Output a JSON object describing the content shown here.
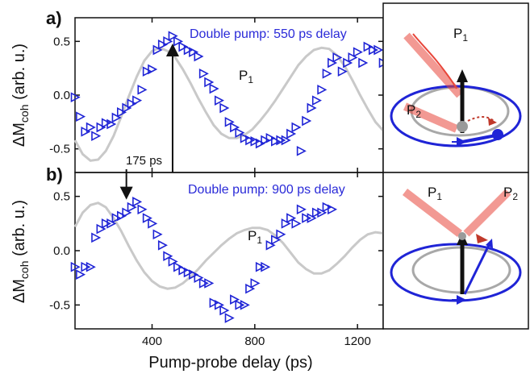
{
  "colors": {
    "marker": "#1f24d6",
    "reference_curve": "#c9c9c9",
    "pulse": "#e8463a",
    "orbit": "#1f24d6",
    "gray_orbit": "#a8a8a8",
    "axis": "#111111"
  },
  "x_axis": {
    "label": "Pump-probe delay (ps)",
    "ticks": [
      400,
      800,
      1200
    ],
    "range": [
      100,
      1300
    ]
  },
  "chart_data": [
    {
      "type": "scatter",
      "panel_label": "a)",
      "title": "Double pump: 550 ps delay",
      "ylabel_main": "ΔM",
      "ylabel_sub": "coh",
      "ylabel_tail": " (arb. u.)",
      "xlim": [
        100,
        1300
      ],
      "ylim": [
        -0.72,
        0.72
      ],
      "yticks": [
        "0.5",
        "0.0",
        "-0.5"
      ],
      "ytick_values": [
        0.5,
        0.0,
        -0.5
      ],
      "marker": "triangle-right, open",
      "grid": false,
      "reference_curve": {
        "label": "P",
        "label_sub": "1",
        "x": [
          100,
          130,
          160,
          190,
          220,
          250,
          280,
          310,
          340,
          370,
          400,
          430,
          460,
          490,
          520,
          550,
          580,
          610,
          640,
          670,
          700,
          730,
          760,
          790,
          820,
          850,
          880,
          910,
          940,
          970,
          1000,
          1030,
          1060,
          1090,
          1120,
          1150,
          1180,
          1210,
          1240,
          1270,
          1300
        ],
        "y": [
          -0.42,
          -0.55,
          -0.61,
          -0.6,
          -0.52,
          -0.38,
          -0.2,
          -0.01,
          0.17,
          0.32,
          0.41,
          0.44,
          0.41,
          0.35,
          0.24,
          0.11,
          -0.03,
          -0.16,
          -0.28,
          -0.36,
          -0.4,
          -0.4,
          -0.37,
          -0.32,
          -0.24,
          -0.15,
          -0.05,
          0.06,
          0.17,
          0.28,
          0.36,
          0.42,
          0.44,
          0.43,
          0.37,
          0.27,
          0.14,
          0.0,
          -0.13,
          -0.25,
          -0.33
        ]
      },
      "points": {
        "x": [
          100,
          120,
          140,
          160,
          180,
          200,
          220,
          240,
          260,
          280,
          300,
          320,
          340,
          360,
          380,
          400,
          420,
          440,
          460,
          480,
          500,
          520,
          540,
          560,
          580,
          600,
          620,
          640,
          660,
          680,
          700,
          720,
          740,
          760,
          780,
          800,
          820,
          840,
          860,
          880,
          900,
          920,
          940,
          960,
          980,
          1000,
          1020,
          1040,
          1060,
          1080,
          1100,
          1120,
          1140,
          1160,
          1180,
          1200,
          1220,
          1240,
          1260,
          1280,
          1300
        ],
        "y": [
          -0.02,
          -0.2,
          -0.34,
          -0.3,
          -0.38,
          -0.3,
          -0.26,
          -0.27,
          -0.21,
          -0.16,
          -0.12,
          -0.08,
          -0.05,
          0.05,
          0.22,
          0.24,
          0.42,
          0.47,
          0.5,
          0.55,
          0.5,
          0.45,
          0.42,
          0.4,
          0.36,
          0.2,
          0.12,
          0.06,
          -0.05,
          -0.12,
          -0.25,
          -0.3,
          -0.35,
          -0.4,
          -0.42,
          -0.43,
          -0.45,
          -0.42,
          -0.4,
          -0.43,
          -0.42,
          -0.42,
          -0.36,
          -0.3,
          -0.52,
          -0.24,
          -0.12,
          -0.05,
          0.05,
          0.2,
          0.3,
          0.35,
          0.22,
          0.3,
          0.35,
          0.4,
          0.3,
          0.45,
          0.42,
          0.42,
          0.3
        ]
      },
      "annotation": {
        "text": "175 ps",
        "x": 175,
        "arrow_to_x": 480,
        "arrow_to_y": 0.45,
        "arrow_from_y": -0.72
      }
    },
    {
      "type": "scatter",
      "panel_label": "b)",
      "title": "Double pump: 900 ps delay",
      "ylabel_main": "ΔM",
      "ylabel_sub": "coh",
      "ylabel_tail": " (arb. u.)",
      "xlim": [
        100,
        1300
      ],
      "ylim": [
        -0.72,
        0.72
      ],
      "yticks": [
        "0.5",
        "0.0",
        "-0.5"
      ],
      "ytick_values": [
        0.5,
        0.0,
        -0.5
      ],
      "marker": "triangle-right, open",
      "grid": false,
      "reference_curve": {
        "label": "P",
        "label_sub": "1",
        "x": [
          100,
          130,
          160,
          190,
          220,
          250,
          280,
          310,
          340,
          370,
          400,
          430,
          460,
          490,
          520,
          550,
          580,
          610,
          640,
          670,
          700,
          730,
          760,
          790,
          820,
          850,
          880,
          910,
          940,
          970,
          1000,
          1030,
          1060,
          1090,
          1120,
          1150,
          1180,
          1210,
          1240,
          1270,
          1300
        ],
        "y": [
          0.22,
          0.35,
          0.42,
          0.44,
          0.4,
          0.3,
          0.18,
          0.04,
          -0.09,
          -0.2,
          -0.28,
          -0.33,
          -0.35,
          -0.34,
          -0.3,
          -0.24,
          -0.17,
          -0.09,
          -0.02,
          0.05,
          0.11,
          0.16,
          0.19,
          0.21,
          0.21,
          0.19,
          0.14,
          0.07,
          -0.02,
          -0.11,
          -0.17,
          -0.21,
          -0.21,
          -0.18,
          -0.12,
          -0.05,
          0.03,
          0.1,
          0.15,
          0.17,
          0.16
        ]
      },
      "points": {
        "x": [
          100,
          120,
          140,
          160,
          180,
          200,
          220,
          240,
          260,
          280,
          300,
          320,
          340,
          360,
          380,
          400,
          420,
          440,
          460,
          480,
          500,
          520,
          540,
          560,
          580,
          600,
          620,
          640,
          660,
          680,
          700,
          720,
          740,
          760,
          780,
          800,
          820,
          840,
          860,
          880,
          900,
          920,
          940,
          960,
          980,
          1000,
          1020,
          1040,
          1060,
          1080,
          1100
        ],
        "y": [
          -0.15,
          -0.22,
          -0.15,
          -0.15,
          0.12,
          0.2,
          0.25,
          0.25,
          0.3,
          0.32,
          0.35,
          0.4,
          0.45,
          0.38,
          0.3,
          0.25,
          0.15,
          0.05,
          -0.05,
          -0.1,
          -0.15,
          -0.18,
          -0.2,
          -0.22,
          -0.25,
          -0.3,
          -0.3,
          -0.48,
          -0.5,
          -0.55,
          -0.62,
          -0.45,
          -0.5,
          -0.5,
          -0.35,
          -0.3,
          -0.15,
          -0.15,
          0.05,
          0.1,
          0.15,
          0.25,
          0.3,
          0.25,
          0.38,
          0.3,
          0.3,
          0.35,
          0.35,
          0.4,
          0.38
        ]
      },
      "annotation": {
        "arrow_x": 300,
        "arrow_from_y": 0.75,
        "arrow_to_y": 0.5
      }
    }
  ],
  "schematics": [
    {
      "labels": [
        "P",
        "P"
      ],
      "label_subs": [
        "1",
        "2"
      ]
    },
    {
      "labels": [
        "P",
        "P"
      ],
      "label_subs": [
        "1",
        "2"
      ]
    }
  ]
}
